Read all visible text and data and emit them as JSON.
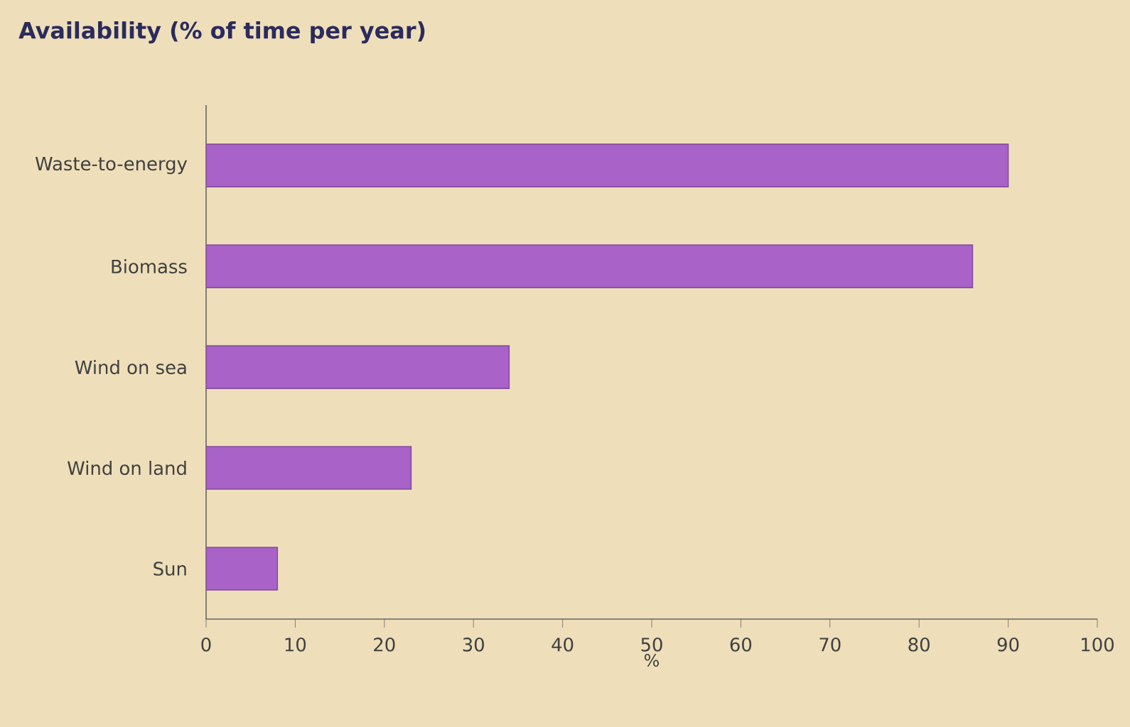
{
  "chart_data": {
    "type": "bar",
    "orientation": "horizontal",
    "title": "Availability (% of time per year)",
    "xlabel": "%",
    "categories": [
      "Waste-to-energy",
      "Biomass",
      "Wind on sea",
      "Wind on land",
      "Sun"
    ],
    "values": [
      90,
      86,
      34,
      23,
      8
    ],
    "color": "#a862c8",
    "xlim": [
      0,
      100
    ],
    "xticks": [
      0,
      10,
      20,
      30,
      40,
      50,
      60,
      70,
      80,
      90,
      100
    ],
    "grid": false
  }
}
